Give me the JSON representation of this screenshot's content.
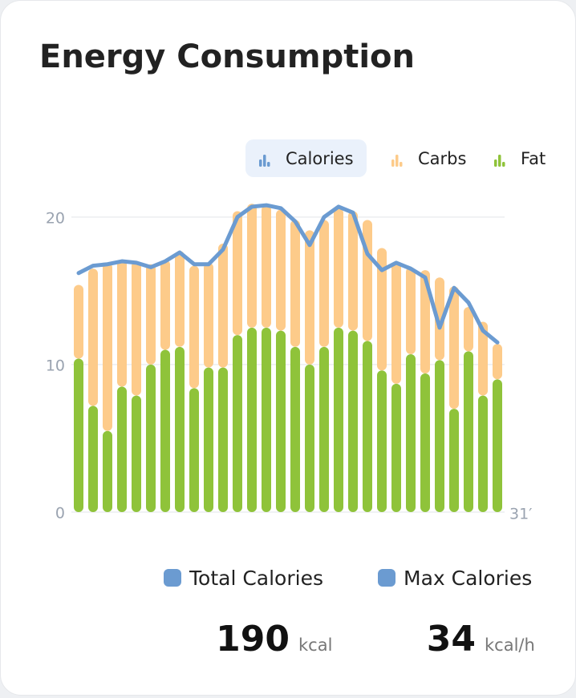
{
  "chart_data": {
    "type": "bar",
    "title": "Energy Consumption",
    "categories": [
      null,
      null,
      null,
      null,
      null,
      null,
      null,
      null,
      null,
      null,
      null,
      null,
      null,
      null,
      null,
      null,
      null,
      null,
      null,
      null,
      null,
      null,
      null,
      null,
      null,
      null,
      null,
      null,
      null,
      null
    ],
    "x_end_label": "31′",
    "series": [
      {
        "name": "Calories",
        "type": "line",
        "color": "#6b9bd1",
        "selected": true,
        "values": [
          16.2,
          16.7,
          16.8,
          17.0,
          16.9,
          16.6,
          17.0,
          17.6,
          16.8,
          16.8,
          17.8,
          20.0,
          20.7,
          20.8,
          20.6,
          19.7,
          18.1,
          20.0,
          20.7,
          20.3,
          17.5,
          16.4,
          16.9,
          16.5,
          15.9,
          12.5,
          15.2,
          14.2,
          12.3,
          11.5
        ]
      },
      {
        "name": "Carbs",
        "type": "bar",
        "color": "#fdcb8a",
        "values": [
          5.0,
          9.3,
          11.4,
          8.6,
          9.1,
          6.8,
          6.1,
          6.5,
          8.3,
          7.1,
          8.4,
          8.4,
          8.4,
          8.3,
          8.2,
          8.6,
          9.1,
          8.6,
          8.1,
          8.1,
          8.2,
          8.3,
          8.3,
          5.9,
          7.0,
          5.6,
          8.3,
          3.0,
          5.0,
          2.4
        ]
      },
      {
        "name": "Fat",
        "type": "bar",
        "color": "#8fc33a",
        "values": [
          10.4,
          7.2,
          5.5,
          8.5,
          7.9,
          10.0,
          11.0,
          11.2,
          8.4,
          9.8,
          9.8,
          12.0,
          12.5,
          12.5,
          12.3,
          11.2,
          10.0,
          11.2,
          12.5,
          12.3,
          11.6,
          9.6,
          8.7,
          10.7,
          9.4,
          10.3,
          7.0,
          10.9,
          7.9,
          9.0
        ]
      }
    ],
    "ylim": [
      0,
      22
    ],
    "yticks": [
      0,
      10,
      20
    ],
    "grid": true
  },
  "summary": [
    {
      "label": "Total Calories",
      "value": 190,
      "unit": "kcal",
      "color": "#6b9bd1"
    },
    {
      "label": "Max Calories",
      "value": 34,
      "unit": "kcal/h",
      "color": "#6b9bd1"
    }
  ]
}
